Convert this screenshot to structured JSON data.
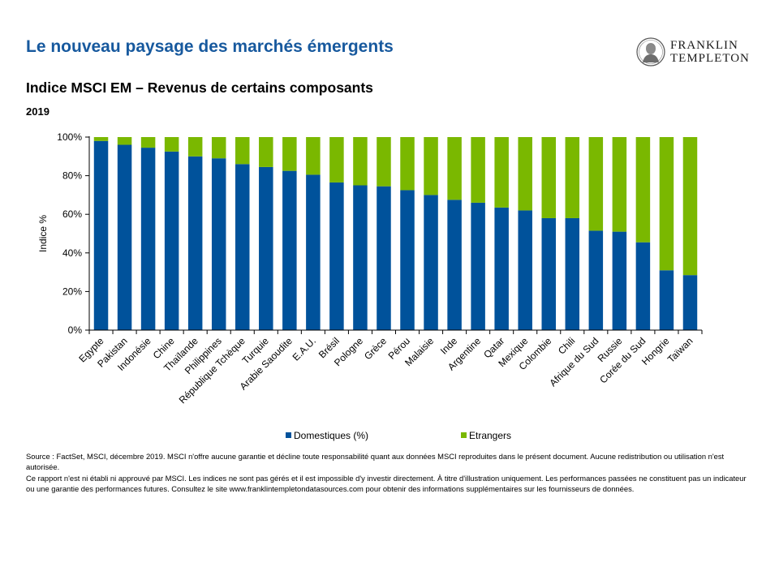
{
  "header": {
    "title": "Le nouveau paysage des marchés émergents",
    "logo_line1": "FRANKLIN",
    "logo_line2": "TEMPLETON"
  },
  "chart_data": {
    "type": "bar",
    "stacked": true,
    "title": "Indice MSCI EM – Revenus de certains composants",
    "subtitle": "2019",
    "ylabel": "Indice %",
    "xlabel": "",
    "ylim": [
      0,
      100
    ],
    "yticks": [
      0,
      20,
      40,
      60,
      80,
      100
    ],
    "ytick_labels": [
      "0%",
      "20%",
      "40%",
      "60%",
      "80%",
      "100%"
    ],
    "grid": false,
    "legend_position": "bottom",
    "categories": [
      "Egypte",
      "Pakistan",
      "Indonésie",
      "Chine",
      "Thaïlande",
      "Philippines",
      "République Tchèque",
      "Turquie",
      "Arabie Saoudite",
      "E.A.U.",
      "Brésil",
      "Pologne",
      "Grèce",
      "Pérou",
      "Malaisie",
      "Inde",
      "Argentine",
      "Qatar",
      "Mexique",
      "Colombie",
      "Chili",
      "Afrique du Sud",
      "Russie",
      "Corée du Sud",
      "Hongrie",
      "Taïwan"
    ],
    "series": [
      {
        "name": "Domestiques (%)",
        "color": "#00529b",
        "values": [
          98,
          96,
          94.5,
          92.5,
          90,
          89,
          86,
          84.5,
          82.5,
          80.5,
          76.5,
          75,
          74.5,
          72.5,
          70,
          67.5,
          66,
          63.5,
          62,
          58,
          58,
          51.5,
          51,
          45.5,
          31,
          28.5
        ]
      },
      {
        "name": "Etrangers",
        "color": "#7ab800",
        "values": [
          2,
          4,
          5.5,
          7.5,
          10,
          11,
          14,
          15.5,
          17.5,
          19.5,
          23.5,
          25,
          25.5,
          27.5,
          30,
          32.5,
          34,
          36.5,
          38,
          42,
          42,
          48.5,
          49,
          54.5,
          69,
          71.5
        ]
      }
    ]
  },
  "footnote": {
    "line1": "Source : FactSet, MSCI, décembre 2019. MSCI n'offre aucune garantie et décline toute responsabilité quant aux données MSCI reproduites dans le présent document. Aucune redistribution ou utilisation n'est autorisée.",
    "line2": "Ce rapport n'est ni établi ni approuvé par MSCI. Les indices ne sont pas gérés et il est impossible d'y investir directement. À titre d'illustration uniquement. Les performances passées ne constituent pas un indicateur ou une garantie des performances futures. Consultez le site www.franklintempletondatasources.com pour obtenir des informations supplémentaires sur les fournisseurs de données."
  }
}
